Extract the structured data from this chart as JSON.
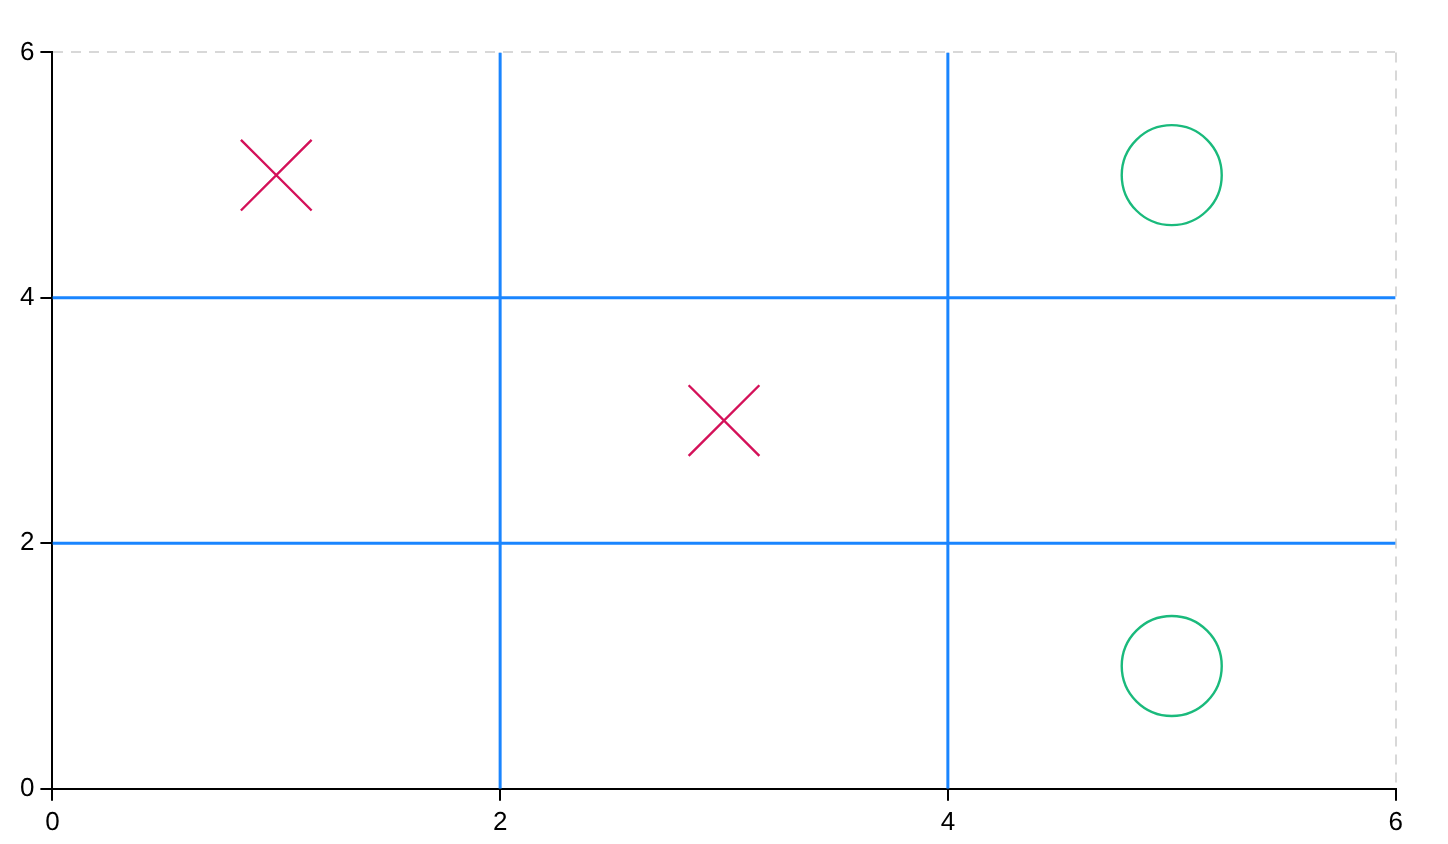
{
  "chart_data": {
    "type": "scatter",
    "xlim": [
      0,
      6
    ],
    "ylim": [
      0,
      6
    ],
    "xticks": [
      0,
      2,
      4,
      6
    ],
    "yticks": [
      0,
      2,
      4,
      6
    ],
    "grid": true,
    "legend": false,
    "series": [
      {
        "type": "line",
        "color": "#1a85ff",
        "x": [
          2,
          2
        ],
        "values": [
          0,
          6
        ],
        "marker": "none"
      },
      {
        "type": "line",
        "color": "#1a85ff",
        "x": [
          4,
          4
        ],
        "values": [
          0,
          6
        ],
        "marker": "none"
      },
      {
        "type": "line",
        "color": "#1a85ff",
        "x": [
          0,
          6
        ],
        "values": [
          2,
          2
        ],
        "marker": "none"
      },
      {
        "type": "line",
        "color": "#1a85ff",
        "x": [
          0,
          6
        ],
        "values": [
          4,
          4
        ],
        "marker": "none"
      },
      {
        "type": "scatter",
        "color": "#d41159",
        "x": [
          1,
          3
        ],
        "values": [
          5,
          3
        ],
        "marker": "cross"
      },
      {
        "type": "scatter",
        "color": "#1aba7c",
        "x": [
          5,
          5
        ],
        "values": [
          5,
          1
        ],
        "marker": "circle"
      }
    ]
  }
}
